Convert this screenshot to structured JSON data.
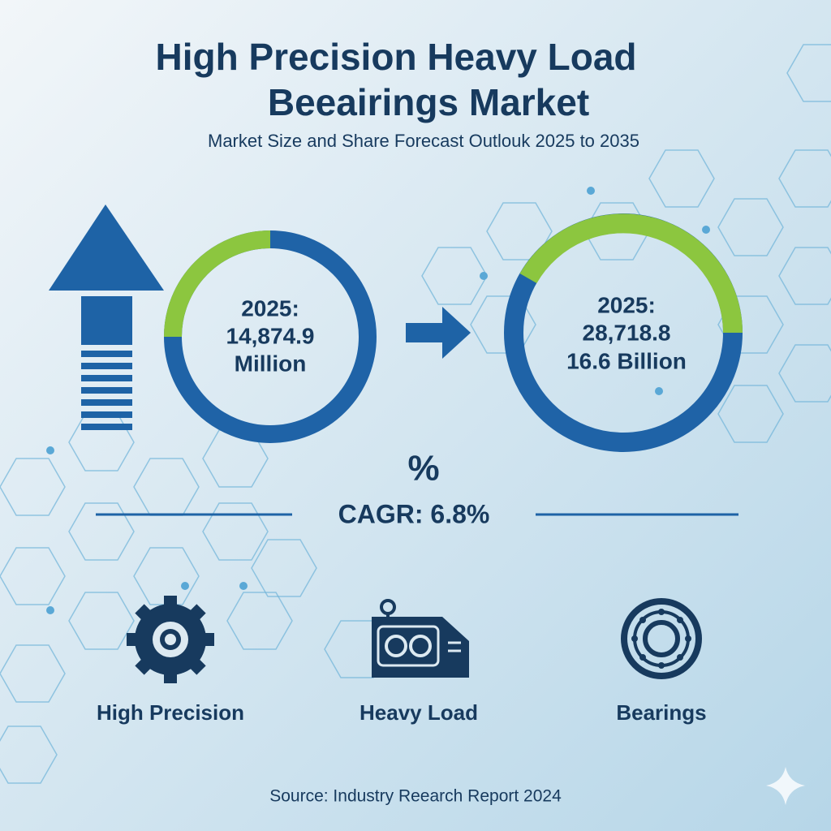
{
  "header": {
    "title_lines": [
      "High Precision Heavy Load",
      "Beeairings Market"
    ],
    "subtitle": "Market Size and Share Forecast Outlouk 2025 to 2035"
  },
  "rings": [
    {
      "lines": [
        "2025:",
        "14,874.9",
        "Million"
      ]
    },
    {
      "lines": [
        "2025:",
        "28,718.8",
        "16.6 Billion"
      ]
    }
  ],
  "cagr": {
    "symbol": "%",
    "label": "CAGR: 6.8%"
  },
  "features": [
    {
      "label": "High Precision"
    },
    {
      "label": "Heavy Load"
    },
    {
      "label": "Bearings"
    }
  ],
  "footer": {
    "source": "Source: Industry Reearch Report 2024"
  }
}
